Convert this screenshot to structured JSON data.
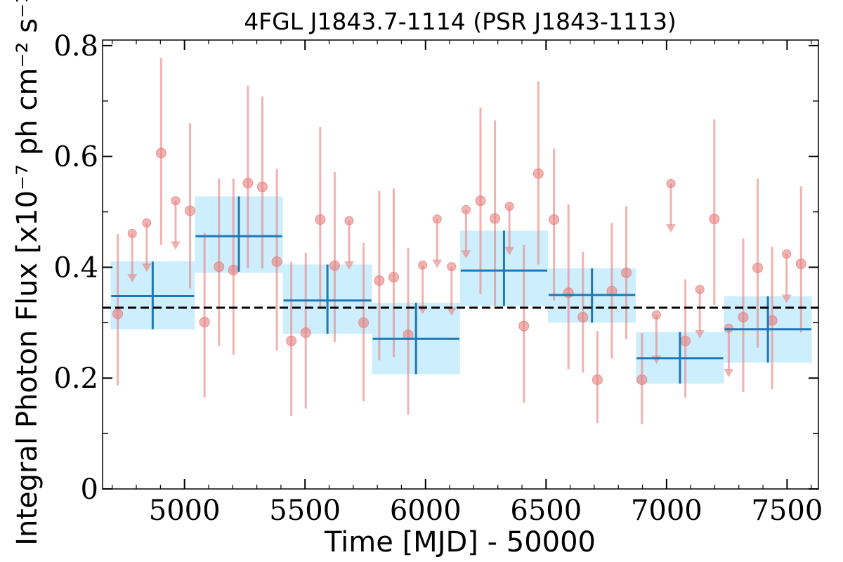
{
  "chart_data": {
    "type": "scatter",
    "title": "4FGL J1843.7-1114 (PSR J1843-1113)",
    "xlabel": "Time [MJD] - 50000",
    "ylabel": "Integral Photon Flux [x10⁻⁷ ph cm⁻² s⁻¹]",
    "xlim": [
      4660,
      7630
    ],
    "ylim": [
      0,
      0.81
    ],
    "x_ticks": [
      5000,
      5500,
      6000,
      6500,
      7000,
      7500
    ],
    "x_tick_labels": [
      "5000",
      "5500",
      "6000",
      "6500",
      "7000",
      "7500"
    ],
    "y_ticks": [
      0,
      0.2,
      0.4,
      0.6,
      0.8
    ],
    "y_tick_labels": [
      "0",
      "0.2",
      "0.4",
      "0.6",
      "0.8"
    ],
    "mean_flux": 0.327,
    "colors": {
      "binned": "#1f77b4",
      "binned_band": "#cdeefc",
      "short_bins": "#e8807f",
      "mean_line": "#000000"
    },
    "series": [
      {
        "kind": "binned",
        "points": [
          {
            "x0": 4693,
            "x1": 5043,
            "y": 0.348,
            "ylo": 0.288,
            "yhi": 0.41,
            "blo": 0.288,
            "bhi": 0.411
          },
          {
            "x0": 5043,
            "x1": 5408,
            "y": 0.456,
            "ylo": 0.392,
            "yhi": 0.528,
            "blo": 0.39,
            "bhi": 0.528
          },
          {
            "x0": 5408,
            "x1": 5778,
            "y": 0.34,
            "ylo": 0.28,
            "yhi": 0.405,
            "blo": 0.28,
            "bhi": 0.405
          },
          {
            "x0": 5778,
            "x1": 6143,
            "y": 0.271,
            "ylo": 0.207,
            "yhi": 0.336,
            "blo": 0.207,
            "bhi": 0.336
          },
          {
            "x0": 6143,
            "x1": 6508,
            "y": 0.394,
            "ylo": 0.33,
            "yhi": 0.466,
            "blo": 0.33,
            "bhi": 0.466
          },
          {
            "x0": 6508,
            "x1": 6873,
            "y": 0.35,
            "ylo": 0.3,
            "yhi": 0.398,
            "blo": 0.3,
            "bhi": 0.398
          },
          {
            "x0": 6873,
            "x1": 7238,
            "y": 0.236,
            "ylo": 0.19,
            "yhi": 0.283,
            "blo": 0.19,
            "bhi": 0.283
          },
          {
            "x0": 7238,
            "x1": 7603,
            "y": 0.288,
            "ylo": 0.228,
            "yhi": 0.348,
            "blo": 0.228,
            "bhi": 0.348
          }
        ]
      },
      {
        "kind": "short_bins",
        "points": [
          {
            "x": 4723,
            "y": 0.316,
            "ylo": 0.187,
            "yhi": 0.46
          },
          {
            "x": 4783,
            "y": 0.461,
            "ylo": 0.375,
            "ul": true
          },
          {
            "x": 4843,
            "y": 0.48,
            "ylo": 0.394,
            "ul": true
          },
          {
            "x": 4903,
            "y": 0.606,
            "ylo": 0.44,
            "yhi": 0.778
          },
          {
            "x": 4963,
            "y": 0.52,
            "ylo": 0.434,
            "ul": true
          },
          {
            "x": 5023,
            "y": 0.502,
            "ylo": 0.362,
            "yhi": 0.66
          },
          {
            "x": 5083,
            "y": 0.301,
            "ylo": 0.165,
            "yhi": 0.462
          },
          {
            "x": 5143,
            "y": 0.401,
            "ylo": 0.258,
            "yhi": 0.56
          },
          {
            "x": 5203,
            "y": 0.395,
            "ylo": 0.242,
            "yhi": 0.56
          },
          {
            "x": 5263,
            "y": 0.552,
            "ylo": 0.398,
            "yhi": 0.728
          },
          {
            "x": 5323,
            "y": 0.545,
            "ylo": 0.398,
            "yhi": 0.708
          },
          {
            "x": 5383,
            "y": 0.41,
            "ylo": 0.25,
            "yhi": 0.577
          },
          {
            "x": 5443,
            "y": 0.267,
            "ylo": 0.132,
            "yhi": 0.41
          },
          {
            "x": 5503,
            "y": 0.282,
            "ylo": 0.145,
            "yhi": 0.426
          },
          {
            "x": 5563,
            "y": 0.486,
            "ylo": 0.325,
            "yhi": 0.653
          },
          {
            "x": 5623,
            "y": 0.403,
            "ylo": 0.265,
            "yhi": 0.572
          },
          {
            "x": 5683,
            "y": 0.484,
            "ylo": 0.398,
            "ul": true
          },
          {
            "x": 5743,
            "y": 0.3,
            "ylo": 0.158,
            "yhi": 0.444
          },
          {
            "x": 5808,
            "y": 0.376,
            "ylo": 0.232,
            "yhi": 0.538
          },
          {
            "x": 5868,
            "y": 0.382,
            "ylo": 0.238,
            "yhi": 0.542
          },
          {
            "x": 5928,
            "y": 0.278,
            "ylo": 0.134,
            "yhi": 0.435
          },
          {
            "x": 5988,
            "y": 0.404,
            "ylo": 0.318,
            "ul": true
          },
          {
            "x": 6048,
            "y": 0.487,
            "ylo": 0.401,
            "ul": true
          },
          {
            "x": 6108,
            "y": 0.401,
            "ylo": 0.315,
            "ul": true
          },
          {
            "x": 6168,
            "y": 0.504,
            "ylo": 0.418,
            "ul": true
          },
          {
            "x": 6228,
            "y": 0.52,
            "ylo": 0.352,
            "yhi": 0.688
          },
          {
            "x": 6288,
            "y": 0.488,
            "ylo": 0.33,
            "yhi": 0.665
          },
          {
            "x": 6348,
            "y": 0.51,
            "ylo": 0.424,
            "ul": true
          },
          {
            "x": 6408,
            "y": 0.294,
            "ylo": 0.155,
            "yhi": 0.44
          },
          {
            "x": 6468,
            "y": 0.569,
            "ylo": 0.405,
            "yhi": 0.736
          },
          {
            "x": 6533,
            "y": 0.486,
            "ylo": 0.34,
            "yhi": 0.614
          },
          {
            "x": 6593,
            "y": 0.354,
            "ylo": 0.216,
            "yhi": 0.513
          },
          {
            "x": 6653,
            "y": 0.31,
            "ylo": 0.21,
            "yhi": 0.428
          },
          {
            "x": 6713,
            "y": 0.197,
            "ylo": 0.119,
            "yhi": 0.285
          },
          {
            "x": 6773,
            "y": 0.357,
            "ylo": 0.235,
            "yhi": 0.48
          },
          {
            "x": 6833,
            "y": 0.39,
            "ylo": 0.27,
            "yhi": 0.51
          },
          {
            "x": 6898,
            "y": 0.197,
            "ylo": 0.117,
            "yhi": 0.281
          },
          {
            "x": 6958,
            "y": 0.314,
            "ylo": 0.228,
            "ul": true
          },
          {
            "x": 7018,
            "y": 0.551,
            "ylo": 0.465,
            "ul": true
          },
          {
            "x": 7078,
            "y": 0.267,
            "ylo": 0.165,
            "yhi": 0.378
          },
          {
            "x": 7138,
            "y": 0.36,
            "ylo": 0.274,
            "ul": true
          },
          {
            "x": 7198,
            "y": 0.487,
            "ylo": 0.332,
            "yhi": 0.667
          },
          {
            "x": 7258,
            "y": 0.29,
            "ylo": 0.204,
            "ul": true
          },
          {
            "x": 7318,
            "y": 0.31,
            "ylo": 0.175,
            "yhi": 0.452
          },
          {
            "x": 7378,
            "y": 0.399,
            "ylo": 0.255,
            "yhi": 0.56
          },
          {
            "x": 7438,
            "y": 0.304,
            "ylo": 0.18,
            "yhi": 0.437
          },
          {
            "x": 7498,
            "y": 0.424,
            "ylo": 0.338,
            "ul": true
          },
          {
            "x": 7558,
            "y": 0.406,
            "ylo": 0.282,
            "yhi": 0.546
          }
        ]
      }
    ]
  }
}
